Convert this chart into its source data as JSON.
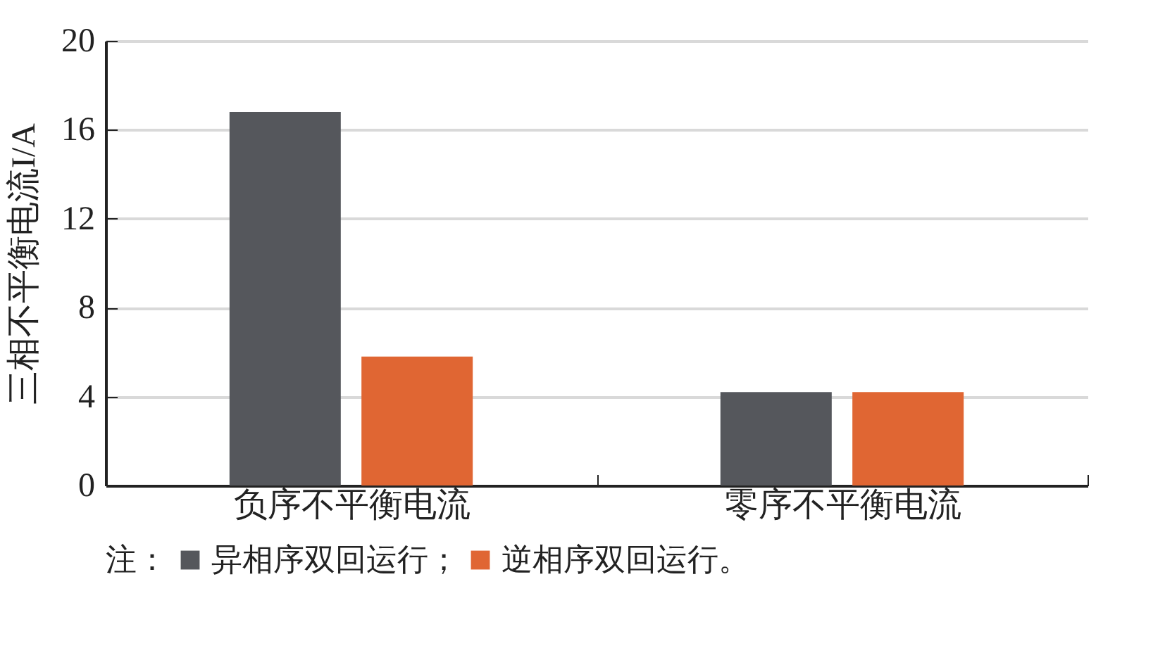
{
  "chart_data": {
    "type": "bar",
    "ylabel": "三相不平衡电流I/A",
    "categories": [
      "负序不平衡电流",
      "零序不平衡电流"
    ],
    "series": [
      {
        "name": "异相序双回运行；",
        "color": "#55575c",
        "values": [
          16.8,
          4.2
        ]
      },
      {
        "name": "逆相序双回运行。",
        "color": "#e06633",
        "values": [
          5.8,
          4.2
        ]
      }
    ],
    "ylim": [
      0,
      20
    ],
    "yticks": [
      0,
      4,
      8,
      12,
      16,
      20
    ],
    "grid": "y",
    "legend": "bottom",
    "legend_title": "注："
  }
}
